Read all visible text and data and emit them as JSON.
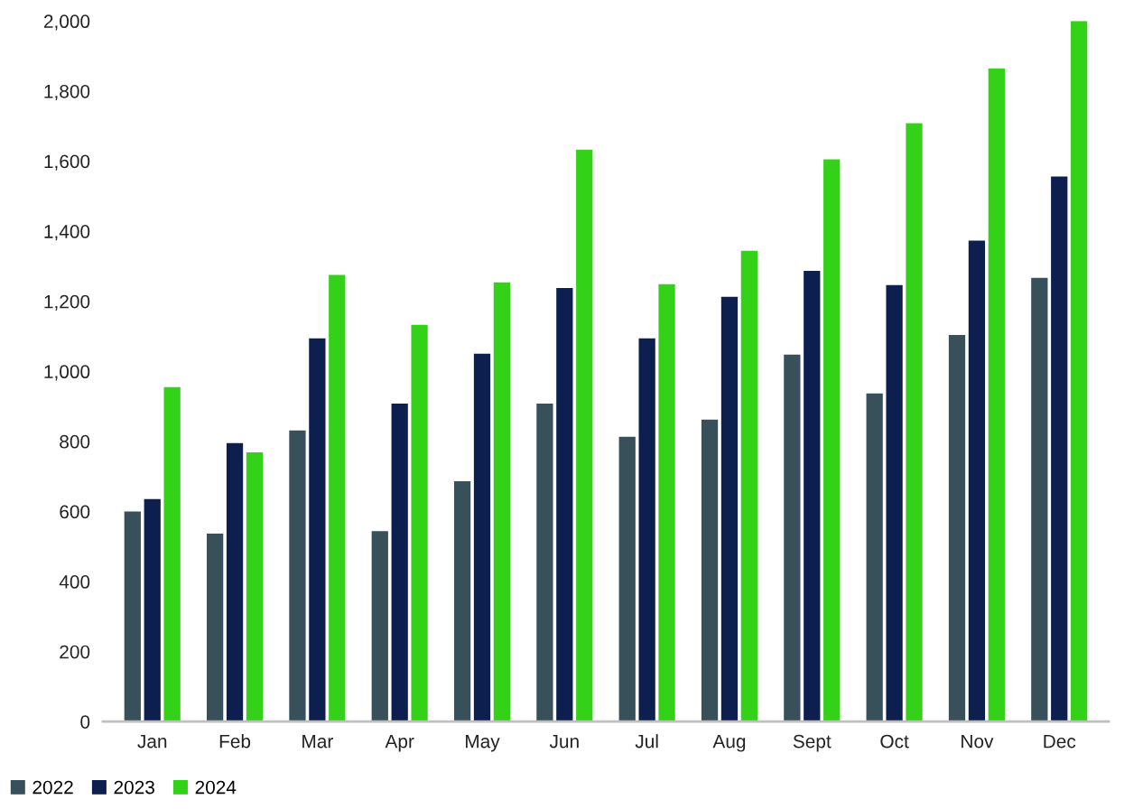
{
  "chart_data": {
    "type": "bar",
    "categories": [
      "Jan",
      "Feb",
      "Mar",
      "Apr",
      "May",
      "Jun",
      "Jul",
      "Aug",
      "Sept",
      "Oct",
      "Nov",
      "Dec"
    ],
    "series": [
      {
        "name": "2022",
        "color": "#37505a",
        "values": [
          600,
          537,
          831,
          544,
          686,
          908,
          813,
          862,
          1048,
          937,
          1104,
          1267
        ]
      },
      {
        "name": "2023",
        "color": "#0c1f4f",
        "values": [
          635,
          795,
          1094,
          908,
          1050,
          1238,
          1094,
          1213,
          1287,
          1246,
          1373,
          1556
        ]
      },
      {
        "name": "2024",
        "color": "#33d117",
        "values": [
          955,
          769,
          1275,
          1133,
          1254,
          1633,
          1249,
          1344,
          1605,
          1708,
          1865,
          2000
        ]
      }
    ],
    "ylim": [
      0,
      2000
    ],
    "yticks": [
      0,
      200,
      400,
      600,
      800,
      {
        "value": 1000,
        "label": "1,000"
      },
      {
        "value": 1200,
        "label": "1,200"
      },
      {
        "value": 1400,
        "label": "1,400"
      },
      {
        "value": 1600,
        "label": "1,600"
      },
      {
        "value": 1800,
        "label": "1,800"
      },
      {
        "value": 2000,
        "label": "2,000"
      }
    ],
    "grid": false,
    "legend": "bottom left"
  }
}
